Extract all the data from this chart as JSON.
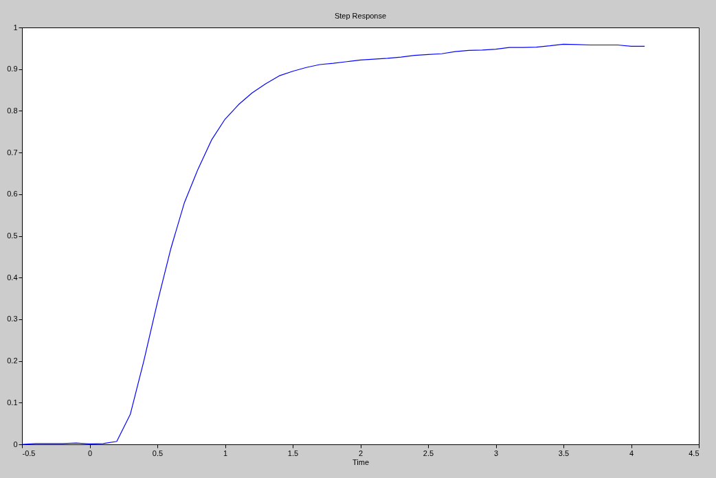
{
  "chart_data": {
    "type": "line",
    "title": "Step Response",
    "xlabel": "Time",
    "x": [
      -0.5,
      -0.4,
      -0.3,
      -0.2,
      -0.1,
      0,
      0.1,
      0.2,
      0.3,
      0.4,
      0.5,
      0.6,
      0.7,
      0.8,
      0.9,
      1.0,
      1.1,
      1.2,
      1.3,
      1.4,
      1.5,
      1.6,
      1.7,
      1.8,
      1.9,
      2.0,
      2.1,
      2.2,
      2.3,
      2.4,
      2.5,
      2.6,
      2.7,
      2.8,
      2.9,
      3.0,
      3.1,
      3.2,
      3.3,
      3.4,
      3.5,
      3.6,
      3.7,
      3.8,
      3.9,
      4.0,
      4.1
    ],
    "series": [
      {
        "color": "#0000ff",
        "values": [
          0,
          0.002,
          0.002,
          0.002,
          0.003,
          0.001,
          0.002,
          0.007,
          0.072,
          0.2,
          0.34,
          0.47,
          0.58,
          0.66,
          0.73,
          0.78,
          0.815,
          0.843,
          0.865,
          0.884,
          0.895,
          0.904,
          0.911,
          0.914,
          0.918,
          0.922,
          0.924,
          0.926,
          0.929,
          0.933,
          0.935,
          0.937,
          0.942,
          0.945,
          0.946,
          0.948,
          0.952,
          0.952,
          0.953,
          0.956,
          0.96,
          0.959,
          0.958,
          0.958,
          0.958,
          0.955,
          0.955
        ]
      }
    ],
    "xlim": [
      -0.5,
      4.5
    ],
    "xticks": [
      -0.5,
      0,
      0.5,
      1,
      1.5,
      2,
      2.5,
      3,
      3.5,
      4,
      4.5
    ],
    "ylim": [
      0,
      1
    ],
    "yticks": [
      0,
      0.1,
      0.2,
      0.3,
      0.4,
      0.5,
      0.6,
      0.7,
      0.8,
      0.9,
      1
    ],
    "grid": false,
    "legend": false,
    "marker": "none",
    "line_style": "solid"
  }
}
